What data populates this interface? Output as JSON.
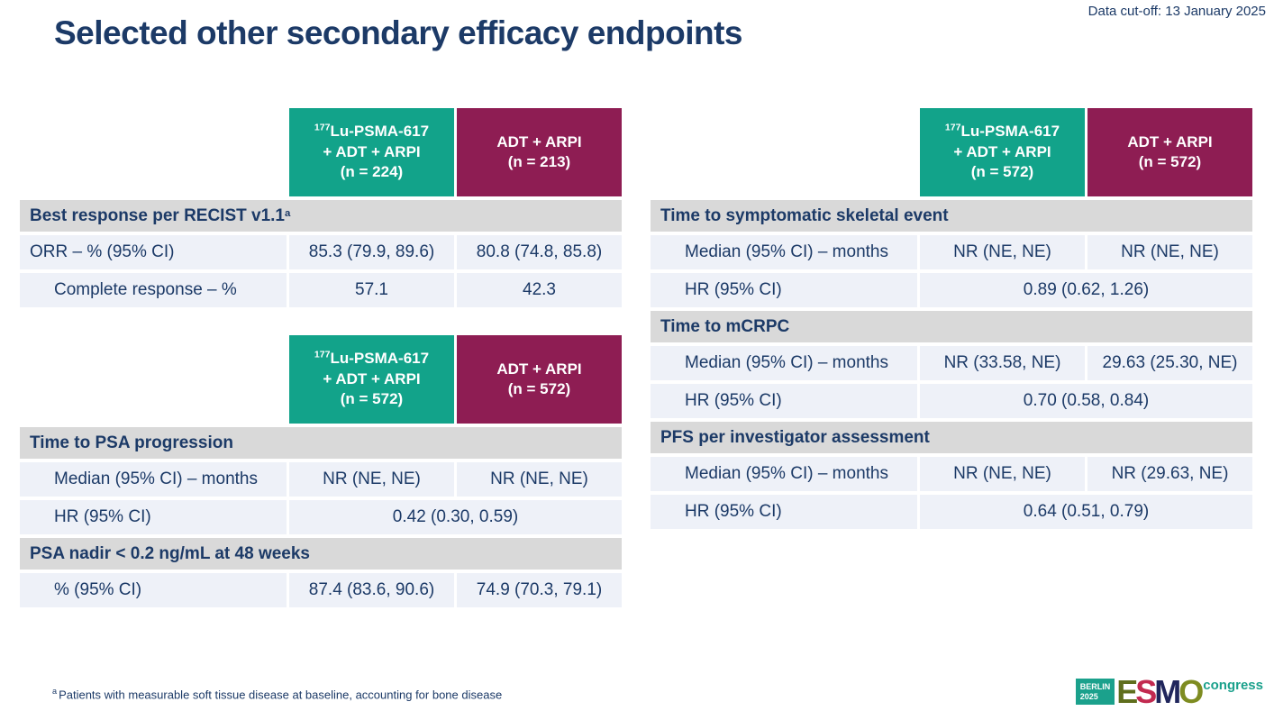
{
  "page": {
    "data_cutoff": "Data cut-off: 13 January 2025",
    "title": "Selected other secondary efficacy endpoints",
    "footnote_marker": "a",
    "footnote": "Patients with measurable soft tissue disease at baseline, accounting for bone disease"
  },
  "colors": {
    "navy": "#1c3a67",
    "teal_header": "#12a38a",
    "maroon_header": "#8e1d53",
    "section_bg": "#d9d9d9",
    "row_bg": "#eef1f8",
    "logo_teal": "#1ba18c"
  },
  "arm_labels": {
    "isotope_sup": "177",
    "treatment_line1": "Lu-PSMA-617",
    "treatment_line2": "+ ADT + ARPI",
    "control_line1": "ADT + ARPI"
  },
  "tables": {
    "recist": {
      "treatment_n": "(n = 224)",
      "control_n": "(n = 213)",
      "section_title": "Best response per RECIST v1.1",
      "section_sup": "a",
      "rows": [
        {
          "label": "ORR – % (95% CI)",
          "treatment": "85.3 (79.9, 89.6)",
          "control": "80.8 (74.8, 85.8)"
        },
        {
          "label": "Complete response – %",
          "treatment": "57.1",
          "control": "42.3"
        }
      ]
    },
    "psa": {
      "treatment_n": "(n = 572)",
      "control_n": "(n = 572)",
      "sections": [
        {
          "title": "Time to PSA progression",
          "median_label": "Median (95% CI) – months",
          "median_treatment": "NR (NE, NE)",
          "median_control": "NR (NE, NE)",
          "hr_label": "HR (95% CI)",
          "hr_value": "0.42 (0.30, 0.59)"
        },
        {
          "title": "PSA nadir < 0.2 ng/mL at 48 weeks",
          "pct_label": "% (95% CI)",
          "pct_treatment": "87.4 (83.6, 90.6)",
          "pct_control": "74.9 (70.3, 79.1)"
        }
      ]
    },
    "right": {
      "treatment_n": "(n = 572)",
      "control_n": "(n = 572)",
      "sections": [
        {
          "title": "Time to symptomatic skeletal event",
          "median_label": "Median (95% CI) – months",
          "median_treatment": "NR (NE, NE)",
          "median_control": "NR (NE, NE)",
          "hr_label": "HR (95% CI)",
          "hr_value": "0.89 (0.62, 1.26)"
        },
        {
          "title": "Time to mCRPC",
          "median_label": "Median (95% CI) – months",
          "median_treatment": "NR (33.58, NE)",
          "median_control": "29.63 (25.30, NE)",
          "hr_label": "HR (95% CI)",
          "hr_value": "0.70 (0.58, 0.84)"
        },
        {
          "title": "PFS per investigator assessment",
          "median_label": "Median (95% CI) – months",
          "median_treatment": "NR (NE, NE)",
          "median_control": "NR (29.63, NE)",
          "hr_label": "HR (95% CI)",
          "hr_value": "0.64 (0.51, 0.79)"
        }
      ]
    }
  },
  "logo": {
    "city": "BERLIN",
    "year": "2025",
    "letter_e": "E",
    "letter_s": "S",
    "letter_m": "M",
    "letter_o": "O",
    "congress": "congress"
  }
}
